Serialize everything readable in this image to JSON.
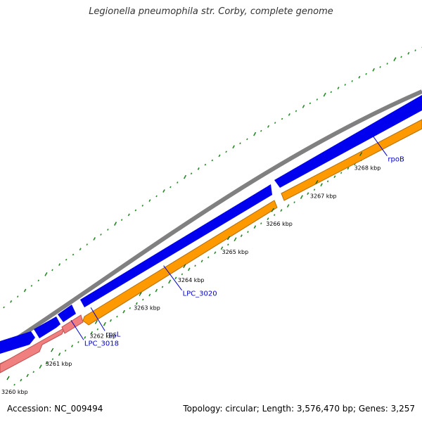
{
  "title": "Legionella pneumophila str. Corby, complete genome",
  "accession": "Accession: NC_009494",
  "summary": "Topology: circular; Length: 3,576,470 bp; Genes: 3,257",
  "colors": {
    "backbone": "#808080",
    "forward_gene": "#0000ee",
    "reverse_cds": "#ff9900",
    "reverse_rna": "#f08080",
    "gc_marks": "#228b22",
    "label_link": "#0000cc"
  },
  "ruler": [
    {
      "label": "3260 kbp",
      "kbp": 3260
    },
    {
      "label": "3261 kbp",
      "kbp": 3261
    },
    {
      "label": "3262 kbp",
      "kbp": 3262
    },
    {
      "label": "3263 kbp",
      "kbp": 3263
    },
    {
      "label": "3264 kbp",
      "kbp": 3264
    },
    {
      "label": "3265 kbp",
      "kbp": 3265
    },
    {
      "label": "3266 kbp",
      "kbp": 3266
    },
    {
      "label": "3267 kbp",
      "kbp": 3267
    },
    {
      "label": "3268 kbp",
      "kbp": 3268
    }
  ],
  "genes": [
    {
      "label": "LPC_3018",
      "kbp": 3261.45
    },
    {
      "label": "rpsL",
      "kbp": 3261.9
    },
    {
      "label": "LPC_3020",
      "kbp": 3263.55
    },
    {
      "label": "rpoB",
      "kbp": 3268.3
    }
  ]
}
